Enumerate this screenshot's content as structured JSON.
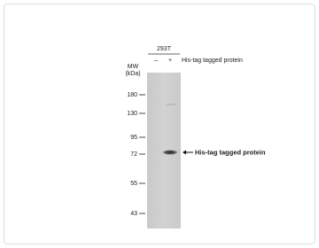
{
  "header": {
    "cell_line": "293T",
    "lanes": [
      "–",
      "+"
    ],
    "treatment": "His-tag tagged protein"
  },
  "mw_label": {
    "line1": "MW",
    "line2": "(kDa)"
  },
  "markers": [
    "180",
    "130",
    "95",
    "72",
    "55",
    "43"
  ],
  "annotation": "His-tag  tagged protein"
}
